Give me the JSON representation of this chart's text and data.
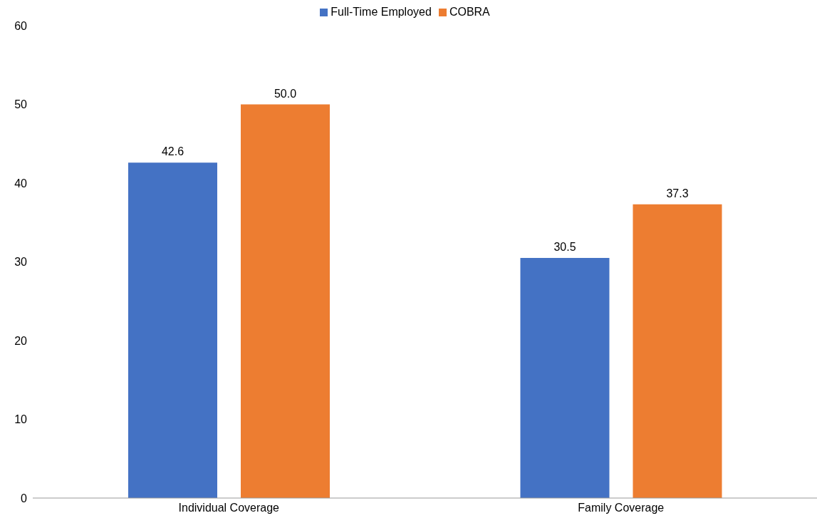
{
  "chart_data": {
    "type": "bar",
    "categories": [
      "Individual Coverage",
      "Family Coverage"
    ],
    "series": [
      {
        "name": "Full-Time Employed",
        "color": "#4472c4",
        "values": [
          42.6,
          30.5
        ]
      },
      {
        "name": "COBRA",
        "color": "#ed7d31",
        "values": [
          50.0,
          37.3
        ]
      }
    ],
    "value_labels": [
      [
        "42.6",
        "30.5"
      ],
      [
        "50.0",
        "37.3"
      ]
    ],
    "ylim": [
      0,
      60
    ],
    "yticks": [
      0,
      10,
      20,
      30,
      40,
      50,
      60
    ],
    "grid": false,
    "legend": "top"
  }
}
